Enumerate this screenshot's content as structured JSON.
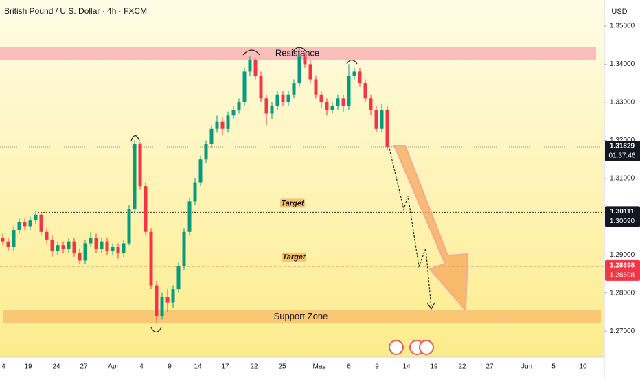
{
  "header": {
    "title": "British Pound / U.S. Dollar · 4h · FXCM",
    "currency": "USD"
  },
  "chart_data": {
    "type": "candlestick",
    "open": [
      1.2945,
      1.2935,
      1.292,
      1.2965,
      1.2985,
      1.2975,
      1.299,
      1.3005,
      1.296,
      1.294,
      1.291,
      1.2925,
      1.2915,
      1.2935,
      1.2905,
      1.2885,
      1.293,
      1.2945,
      1.2915,
      1.2935,
      1.291,
      1.292,
      1.2905,
      1.293,
      1.302,
      1.319,
      1.308,
      1.296,
      1.282,
      1.274,
      1.279,
      1.2775,
      1.281,
      1.287,
      1.296,
      1.304,
      1.309,
      1.315,
      1.319,
      1.323,
      1.325,
      1.323,
      1.3265,
      1.328,
      1.33,
      1.338,
      1.341,
      1.337,
      1.331,
      1.327,
      1.329,
      1.332,
      1.33,
      1.332,
      1.335,
      1.342,
      1.34,
      1.336,
      1.332,
      1.33,
      1.328,
      1.329,
      1.331,
      1.329,
      1.337,
      1.338,
      1.335,
      1.331,
      1.328,
      1.323,
      1.328
    ],
    "high": [
      1.2955,
      1.2945,
      1.2975,
      1.2995,
      1.2995,
      1.3,
      1.3015,
      1.301,
      1.297,
      1.295,
      1.2935,
      1.2935,
      1.2945,
      1.2945,
      1.2915,
      1.294,
      1.296,
      1.2955,
      1.2945,
      1.2945,
      1.293,
      1.293,
      1.294,
      1.303,
      1.32,
      1.3195,
      1.309,
      1.297,
      1.283,
      1.28,
      1.281,
      1.282,
      1.288,
      1.297,
      1.305,
      1.31,
      1.316,
      1.32,
      1.324,
      1.3265,
      1.326,
      1.3275,
      1.329,
      1.331,
      1.339,
      1.342,
      1.3415,
      1.338,
      1.332,
      1.33,
      1.333,
      1.333,
      1.333,
      1.336,
      1.3445,
      1.343,
      1.341,
      1.337,
      1.333,
      1.331,
      1.33,
      1.332,
      1.332,
      1.34,
      1.339,
      1.339,
      1.336,
      1.332,
      1.329,
      1.3295,
      1.329
    ],
    "low": [
      1.2925,
      1.291,
      1.291,
      1.2955,
      1.2965,
      1.2965,
      1.298,
      1.295,
      1.293,
      1.2895,
      1.29,
      1.2905,
      1.2905,
      1.2895,
      1.2875,
      1.2875,
      1.292,
      1.2905,
      1.2905,
      1.29,
      1.29,
      1.289,
      1.2895,
      1.2925,
      1.301,
      1.307,
      1.295,
      1.281,
      1.272,
      1.273,
      1.275,
      1.276,
      1.28,
      1.286,
      1.295,
      1.303,
      1.308,
      1.314,
      1.318,
      1.322,
      1.3215,
      1.322,
      1.3255,
      1.327,
      1.329,
      1.337,
      1.336,
      1.33,
      1.324,
      1.3255,
      1.328,
      1.329,
      1.329,
      1.331,
      1.334,
      1.339,
      1.335,
      1.331,
      1.3285,
      1.3265,
      1.327,
      1.328,
      1.3275,
      1.328,
      1.336,
      1.334,
      1.33,
      1.3265,
      1.322,
      1.322,
      1.3175
    ],
    "close": [
      1.2935,
      1.292,
      1.2965,
      1.2985,
      1.2975,
      1.299,
      1.3005,
      1.296,
      1.294,
      1.291,
      1.2925,
      1.2915,
      1.2935,
      1.2905,
      1.2885,
      1.293,
      1.2945,
      1.2915,
      1.2935,
      1.291,
      1.292,
      1.2905,
      1.293,
      1.302,
      1.319,
      1.308,
      1.296,
      1.282,
      1.274,
      1.279,
      1.2775,
      1.281,
      1.287,
      1.296,
      1.304,
      1.309,
      1.315,
      1.319,
      1.323,
      1.325,
      1.323,
      1.3265,
      1.328,
      1.33,
      1.338,
      1.341,
      1.337,
      1.331,
      1.327,
      1.329,
      1.332,
      1.33,
      1.332,
      1.335,
      1.342,
      1.34,
      1.336,
      1.332,
      1.33,
      1.328,
      1.329,
      1.331,
      1.329,
      1.337,
      1.338,
      1.335,
      1.331,
      1.328,
      1.323,
      1.328,
      1.3183
    ],
    "colors": {
      "up": "#089981",
      "down": "#f23645"
    },
    "ylim": [
      1.2632,
      1.3568
    ],
    "yticks": [
      {
        "value": 1.35,
        "label": "1.35000"
      },
      {
        "value": 1.34,
        "label": "1.34000"
      },
      {
        "value": 1.33,
        "label": "1.33000"
      },
      {
        "value": 1.32,
        "label": "1.32000"
      },
      {
        "value": 1.31,
        "label": "1.31000"
      },
      {
        "value": 1.29,
        "label": "1.29000"
      },
      {
        "value": 1.28,
        "label": "1.28000"
      },
      {
        "value": 1.27,
        "label": "1.27000"
      }
    ],
    "x_labels": [
      "4",
      "19",
      "24",
      "27",
      "Apr",
      "4",
      "9",
      "14",
      "17",
      "22",
      "25",
      "May",
      "6",
      "9",
      "14",
      "19",
      "22",
      "27",
      "Jun",
      "5",
      "10"
    ],
    "zones": [
      {
        "label": "Resistance",
        "top": 1.3445,
        "bottom": 1.341,
        "color": "#f8b4b4"
      },
      {
        "label": "Support Zone",
        "top": 1.2755,
        "bottom": 1.272,
        "color": "#f9bf6e"
      }
    ],
    "levels": [
      {
        "label": "Target",
        "value": 1.30111
      },
      {
        "label": "Target",
        "value": 1.28698
      }
    ],
    "price_tags": [
      {
        "value": 1.31829,
        "label": "1.31829",
        "sub_label": "01:37:46",
        "color": "#131722"
      },
      {
        "value": 1.30111,
        "label": "1.30111",
        "sub_label": "1.30090",
        "color": "#131722"
      },
      {
        "value": 1.28698,
        "label": "1.28698",
        "sub_label": "1.28698",
        "color": "#f23645"
      }
    ]
  }
}
